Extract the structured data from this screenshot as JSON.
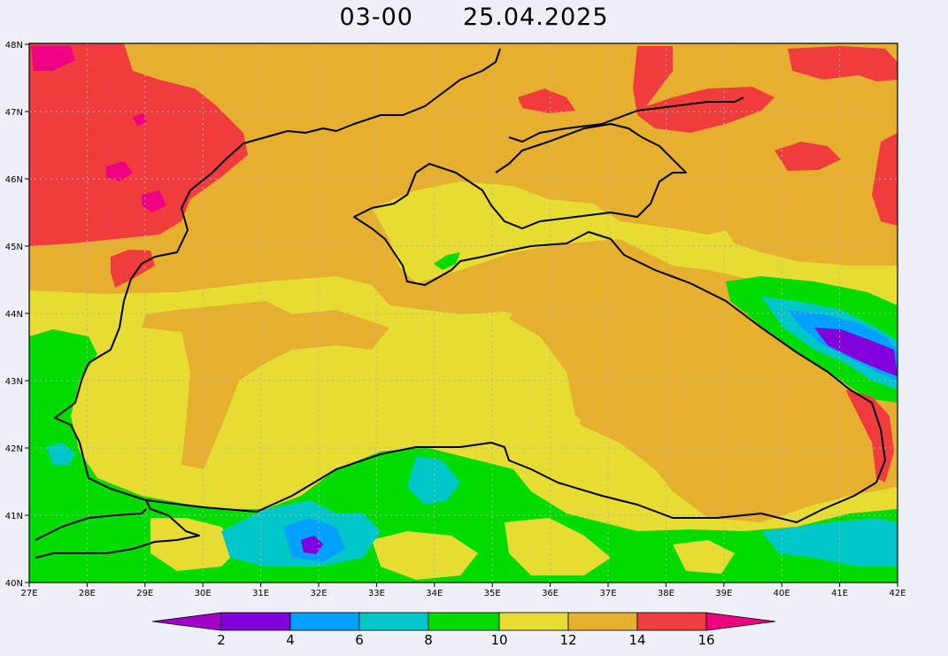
{
  "title": {
    "time": "03-00",
    "date": "25.04.2025"
  },
  "axes": {
    "lon_labels": [
      "27E",
      "28E",
      "29E",
      "30E",
      "31E",
      "32E",
      "33E",
      "34E",
      "35E",
      "36E",
      "37E",
      "38E",
      "39E",
      "40E",
      "41E",
      "42E"
    ],
    "lat_labels": [
      "40N",
      "41N",
      "42N",
      "43N",
      "44N",
      "45N",
      "46N",
      "47N",
      "48N"
    ]
  },
  "colorbar": {
    "labels": [
      "2",
      "4",
      "6",
      "8",
      "10",
      "12",
      "14",
      "16"
    ],
    "colors": [
      "#a000c8",
      "#8200dc",
      "#00a0ff",
      "#00c8c8",
      "#00dc00",
      "#e6dc32",
      "#e6af2d",
      "#f03c3c",
      "#f00082"
    ]
  },
  "colors": {
    "sea_base": "#e6af2d",
    "warm": "#f03c3c",
    "hot": "#f00082",
    "mild": "#e6dc32",
    "cool": "#00dc00",
    "cold": "#00c8c8",
    "colder": "#00a0ff",
    "coldest": "#8200dc",
    "frame": "#000000",
    "grid": "#b4b4b4"
  }
}
